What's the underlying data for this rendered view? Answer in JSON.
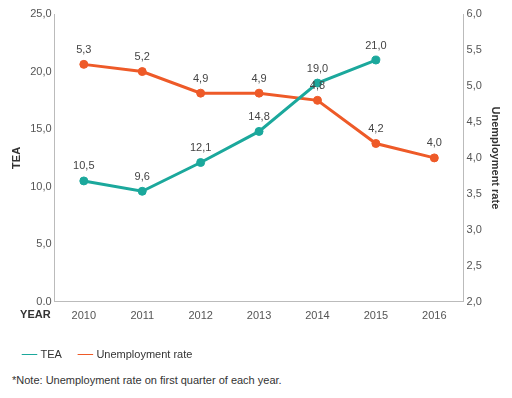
{
  "chart_data": {
    "type": "line",
    "categories": [
      "2010",
      "2011",
      "2012",
      "2013",
      "2014",
      "2015",
      "2016"
    ],
    "x_label": "YEAR",
    "y_label": "TEA",
    "y2_label": "Unemployment rate",
    "note": "*Note: Unemployment rate on first quarter of each year.",
    "series": [
      {
        "name": "TEA",
        "color": "#1ba89c",
        "marker": "circle",
        "values": [
          10.5,
          9.6,
          12.1,
          14.8,
          19.0,
          21.0,
          null
        ],
        "value_labels": [
          "10,5",
          "9,6",
          "12,1",
          "14,8",
          "19,0",
          "21,0",
          null
        ]
      },
      {
        "name": "Unemployment rate",
        "color": "#ee5a28",
        "marker": "circle",
        "axis": "y2",
        "values": [
          5.3,
          5.2,
          4.9,
          4.9,
          4.8,
          4.2,
          4.0
        ],
        "value_labels": [
          "5,3",
          "5,2",
          "4,9",
          "4,9",
          "4,8",
          "4,2",
          "4,0"
        ]
      }
    ],
    "ylim": [
      0,
      25
    ],
    "yticks": [
      {
        "value": 0,
        "label": "0.0"
      },
      {
        "value": 5,
        "label": "5,0"
      },
      {
        "value": 10,
        "label": "10,0"
      },
      {
        "value": 15,
        "label": "15,0"
      },
      {
        "value": 20,
        "label": "20,0"
      },
      {
        "value": 25,
        "label": "25,0"
      }
    ],
    "y2lim": [
      2,
      6
    ],
    "y2ticks": [
      {
        "value": 2,
        "label": "2,0"
      },
      {
        "value": 2.5,
        "label": "2,5"
      },
      {
        "value": 3,
        "label": "3,0"
      },
      {
        "value": 3.5,
        "label": "3,5"
      },
      {
        "value": 4,
        "label": "4,0"
      },
      {
        "value": 4.5,
        "label": "4,5"
      },
      {
        "value": 5,
        "label": "5,0"
      },
      {
        "value": 5.5,
        "label": "5,5"
      },
      {
        "value": 6,
        "label": "6,0"
      }
    ],
    "grid": false,
    "legend": "bottom",
    "data_labels": true
  }
}
